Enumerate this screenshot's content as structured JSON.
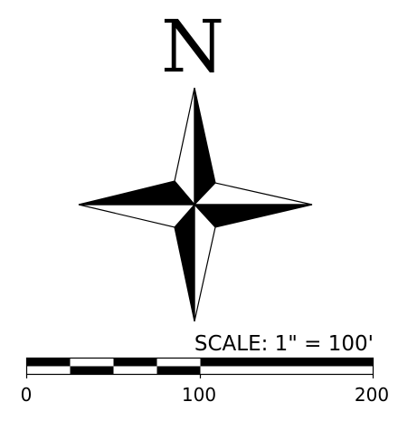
{
  "north_arrow": {
    "letter": "N",
    "fill_color": "#000000",
    "background_color": "#ffffff"
  },
  "scale_bar": {
    "caption": "SCALE: 1\" = 100'",
    "tick_labels": [
      "0",
      "100",
      "200"
    ],
    "fill_color": "#000000"
  }
}
